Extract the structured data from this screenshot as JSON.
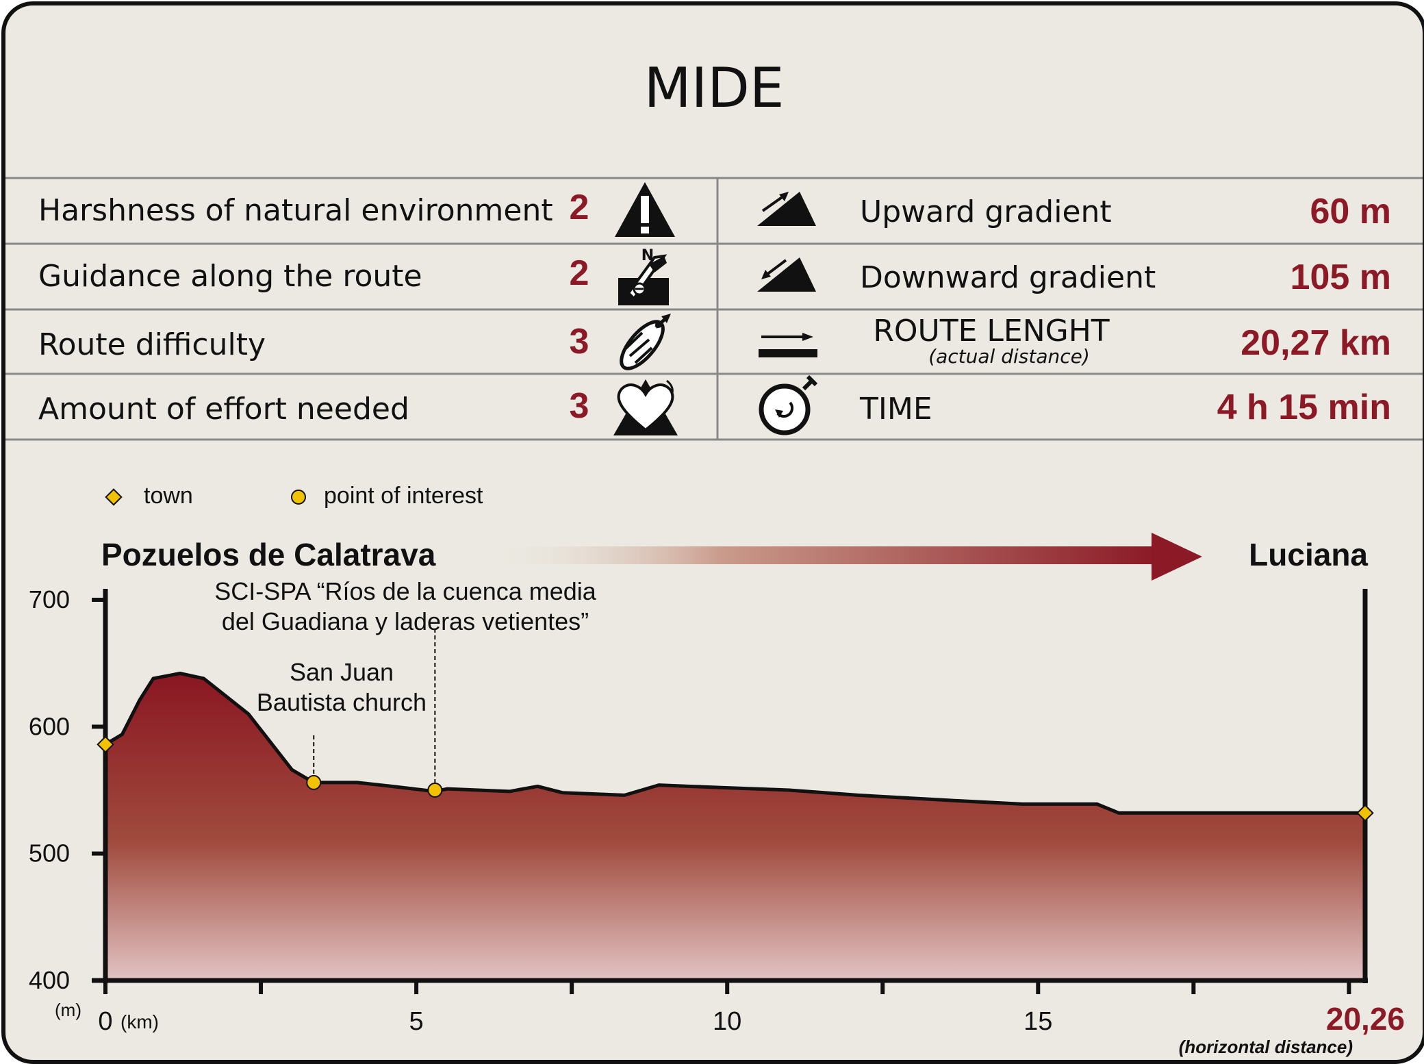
{
  "title": "MIDE",
  "mide_left": [
    {
      "label": "Harshness of natural environment",
      "value": "2",
      "icon": "warning-triangle-icon"
    },
    {
      "label": "Guidance along the route",
      "value": "2",
      "icon": "compass-signpost-icon"
    },
    {
      "label": "Route difficulty",
      "value": "3",
      "icon": "footprint-icon"
    },
    {
      "label": "Amount of effort needed",
      "value": "3",
      "icon": "heart-mountain-icon"
    }
  ],
  "mide_right": [
    {
      "label": "Upward gradient",
      "sublabel": "",
      "value": "60 m",
      "icon": "upward-slope-icon"
    },
    {
      "label": "Downward gradient",
      "sublabel": "",
      "value": "105 m",
      "icon": "downward-slope-icon"
    },
    {
      "label": "ROUTE LENGHT",
      "sublabel": "(actual distance)",
      "value": "20,27 km",
      "icon": "distance-arrow-icon"
    },
    {
      "label": "TIME",
      "sublabel": "",
      "value": "4 h 15 min",
      "icon": "stopwatch-icon"
    }
  ],
  "legend": {
    "town": "town",
    "poi": "point of interest"
  },
  "colors": {
    "accent": "#8b1a26",
    "background": "#ebe9e1",
    "marker": "#f2c200"
  },
  "chart_data": {
    "type": "area",
    "start_label": "Pozuelos de Calatrava",
    "end_label": "Luciana",
    "y_unit": "(m)",
    "x_unit": "(km)",
    "x_end_label": "20,26",
    "x_end_note": "(horizontal distance)",
    "xlim": [
      0,
      20.26
    ],
    "ylim": [
      400,
      700
    ],
    "yticks": [
      700,
      600,
      500,
      400
    ],
    "xtick_labels": [
      0,
      5,
      10,
      15
    ],
    "x_minor_ticks": [
      2.5,
      7.5,
      12.5,
      17.5,
      20
    ],
    "x": [
      0,
      0.27,
      0.55,
      0.77,
      1.2,
      1.58,
      2.3,
      3.0,
      3.35,
      4.05,
      4.6,
      5.3,
      5.5,
      6.5,
      6.95,
      7.35,
      8.35,
      8.9,
      9.9,
      11.0,
      12.1,
      13.55,
      14.75,
      15.95,
      16.3,
      20.26
    ],
    "y": [
      586,
      594,
      621,
      638,
      642,
      638,
      610,
      566,
      556,
      556,
      553,
      549,
      551,
      549,
      553,
      548,
      546,
      554,
      552,
      550,
      546,
      542,
      539,
      539,
      532,
      532
    ],
    "towns": [
      {
        "x": 0,
        "y": 586
      },
      {
        "x": 20.26,
        "y": 532
      }
    ],
    "points_of_interest": [
      {
        "x": 3.35,
        "y": 556,
        "label_lines": [
          "San Juan",
          "Bautista church"
        ]
      },
      {
        "x": 5.3,
        "y": 550,
        "label_lines": [
          "SCI-SPA “Ríos de la cuenca media",
          "del Guadiana y laderas vetientes”"
        ]
      }
    ]
  }
}
